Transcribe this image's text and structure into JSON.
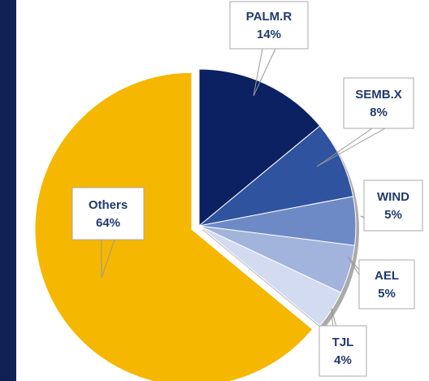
{
  "chart_data": {
    "type": "pie",
    "categories": [
      "PALM.R",
      "SEMB.X",
      "WIND",
      "AEL",
      "TJL",
      "Others"
    ],
    "values": [
      14,
      8,
      5,
      5,
      4,
      64
    ],
    "value_labels": [
      "14%",
      "8%",
      "5%",
      "5%",
      "4%",
      "64%"
    ],
    "colors": [
      "#0b2161",
      "#2f539f",
      "#6e8ac6",
      "#a2b4db",
      "#d2dbef",
      "#f5b700"
    ]
  }
}
